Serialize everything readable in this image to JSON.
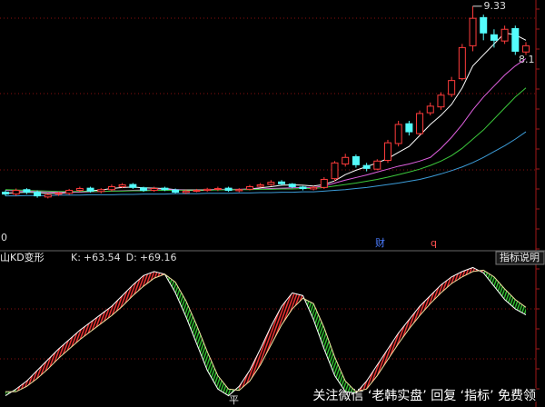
{
  "chart_data": [
    {
      "type": "candlestick",
      "ylim": [
        2.8,
        9.5
      ],
      "open": [
        4.25,
        4.2,
        4.32,
        4.25,
        4.12,
        4.2,
        4.22,
        4.3,
        4.36,
        4.27,
        4.32,
        4.4,
        4.46,
        4.37,
        4.3,
        4.36,
        4.31,
        4.24,
        4.29,
        4.3,
        4.33,
        4.36,
        4.29,
        4.33,
        4.41,
        4.46,
        4.53,
        4.47,
        4.39,
        4.34,
        4.38,
        4.62,
        5.02,
        5.22,
        4.98,
        4.88,
        5.12,
        5.58,
        6.12,
        5.85,
        6.42,
        6.58,
        6.92,
        7.35,
        8.25,
        9.02,
        8.55,
        8.38,
        8.72,
        8.08
      ],
      "high": [
        4.3,
        4.35,
        4.36,
        4.3,
        4.22,
        4.26,
        4.34,
        4.4,
        4.4,
        4.36,
        4.46,
        4.5,
        4.5,
        4.4,
        4.4,
        4.4,
        4.35,
        4.32,
        4.34,
        4.37,
        4.4,
        4.4,
        4.36,
        4.45,
        4.5,
        4.58,
        4.58,
        4.5,
        4.42,
        4.42,
        4.66,
        5.1,
        5.3,
        5.28,
        5.05,
        5.15,
        5.68,
        6.2,
        6.2,
        6.48,
        6.7,
        6.98,
        7.4,
        8.3,
        9.33,
        9.1,
        8.7,
        8.8,
        8.8,
        8.35
      ],
      "low": [
        4.15,
        4.15,
        4.2,
        4.1,
        4.08,
        4.15,
        4.18,
        4.26,
        4.24,
        4.22,
        4.28,
        4.36,
        4.34,
        4.26,
        4.26,
        4.28,
        4.22,
        4.2,
        4.25,
        4.26,
        4.28,
        4.26,
        4.25,
        4.3,
        4.38,
        4.42,
        4.44,
        4.36,
        4.3,
        4.3,
        4.34,
        4.55,
        4.95,
        4.92,
        4.82,
        4.85,
        5.05,
        5.5,
        5.8,
        5.8,
        6.35,
        6.5,
        6.85,
        7.3,
        8.1,
        8.4,
        8.2,
        8.3,
        8.0,
        8.0
      ],
      "close": [
        4.2,
        4.3,
        4.25,
        4.15,
        4.18,
        4.22,
        4.3,
        4.35,
        4.28,
        4.32,
        4.4,
        4.45,
        4.38,
        4.3,
        4.35,
        4.32,
        4.25,
        4.28,
        4.3,
        4.33,
        4.35,
        4.3,
        4.32,
        4.4,
        4.45,
        4.52,
        4.48,
        4.4,
        4.35,
        4.38,
        4.6,
        5.05,
        5.2,
        5.0,
        4.9,
        5.1,
        5.6,
        6.1,
        5.9,
        6.4,
        6.6,
        6.9,
        7.3,
        8.2,
        9.0,
        8.6,
        8.4,
        8.7,
        8.1,
        8.25
      ],
      "up_color": "#ff3c3c",
      "down_color": "#54fcfc",
      "series": [
        {
          "color": "#ffffff",
          "values": [
            4.22,
            4.24,
            4.25,
            4.24,
            4.22,
            4.22,
            4.24,
            4.26,
            4.29,
            4.31,
            4.35,
            4.38,
            4.39,
            4.37,
            4.36,
            4.35,
            4.32,
            4.3,
            4.3,
            4.3,
            4.32,
            4.32,
            4.32,
            4.34,
            4.37,
            4.4,
            4.44,
            4.45,
            4.44,
            4.42,
            4.46,
            4.56,
            4.73,
            4.85,
            4.95,
            5.05,
            5.17,
            5.34,
            5.5,
            5.8,
            6.1,
            6.35,
            6.65,
            7.1,
            7.7,
            8.0,
            8.3,
            8.6,
            8.55,
            8.4
          ]
        },
        {
          "color": "#e060e0",
          "values": [
            4.3,
            4.29,
            4.28,
            4.27,
            4.26,
            4.25,
            4.25,
            4.25,
            4.26,
            4.27,
            4.28,
            4.29,
            4.3,
            4.31,
            4.31,
            4.32,
            4.32,
            4.32,
            4.32,
            4.32,
            4.33,
            4.33,
            4.33,
            4.34,
            4.34,
            4.35,
            4.36,
            4.37,
            4.38,
            4.38,
            4.42,
            4.5,
            4.58,
            4.65,
            4.72,
            4.8,
            4.88,
            4.96,
            5.02,
            5.1,
            5.2,
            5.45,
            5.75,
            6.1,
            6.5,
            6.85,
            7.15,
            7.45,
            7.7,
            7.9
          ]
        },
        {
          "color": "#3cc83c",
          "values": [
            4.32,
            4.31,
            4.3,
            4.29,
            4.28,
            4.27,
            4.27,
            4.27,
            4.27,
            4.27,
            4.28,
            4.28,
            4.29,
            4.29,
            4.3,
            4.3,
            4.3,
            4.31,
            4.31,
            4.31,
            4.31,
            4.32,
            4.32,
            4.32,
            4.33,
            4.33,
            4.34,
            4.34,
            4.35,
            4.35,
            4.38,
            4.42,
            4.46,
            4.5,
            4.55,
            4.6,
            4.66,
            4.73,
            4.8,
            4.88,
            4.98,
            5.1,
            5.25,
            5.45,
            5.7,
            5.95,
            6.25,
            6.55,
            6.85,
            7.1
          ]
        },
        {
          "color": "#3c9cd8",
          "values": [
            4.15,
            4.15,
            4.16,
            4.16,
            4.16,
            4.17,
            4.17,
            4.17,
            4.18,
            4.18,
            4.18,
            4.19,
            4.19,
            4.2,
            4.2,
            4.2,
            4.21,
            4.21,
            4.21,
            4.22,
            4.22,
            4.22,
            4.23,
            4.23,
            4.24,
            4.24,
            4.25,
            4.25,
            4.26,
            4.26,
            4.28,
            4.3,
            4.32,
            4.35,
            4.38,
            4.42,
            4.46,
            4.5,
            4.55,
            4.6,
            4.67,
            4.75,
            4.84,
            4.94,
            5.06,
            5.2,
            5.36,
            5.52,
            5.7,
            5.9
          ]
        }
      ],
      "annotations": [
        "8.1",
        "0",
        "财",
        "q"
      ]
    },
    {
      "type": "kd",
      "title": "山KD变形",
      "ylim": [
        0,
        100
      ],
      "rise_color": "#e83030",
      "fall_color": "#2eb82e",
      "series": [
        {
          "name": "K:",
          "color": "#ffffff",
          "values": [
            3,
            8,
            14,
            22,
            30,
            38,
            45,
            52,
            58,
            64,
            70,
            78,
            86,
            93,
            96,
            94,
            80,
            62,
            42,
            22,
            8,
            3,
            10,
            22,
            38,
            55,
            70,
            80,
            78,
            60,
            38,
            18,
            6,
            5,
            14,
            26,
            38,
            50,
            60,
            70,
            78,
            86,
            92,
            96,
            99,
            95,
            85,
            75,
            68,
            63.54
          ],
          "value_labels": [
            null,
            null,
            null,
            null,
            null,
            null,
            null,
            null,
            null,
            null,
            null,
            null,
            null,
            null,
            null,
            null,
            null,
            null,
            null,
            null,
            null,
            null,
            null,
            null,
            null,
            null,
            null,
            null,
            null,
            null,
            null,
            null,
            null,
            null,
            null,
            null,
            null,
            null,
            null,
            null,
            null,
            null,
            null,
            null,
            null,
            null,
            null,
            null,
            null,
            "+63.54"
          ]
        },
        {
          "name": "D:",
          "color": "#f0e0a0",
          "values": [
            6,
            6,
            10,
            16,
            23,
            31,
            38,
            45,
            51,
            57,
            63,
            70,
            78,
            85,
            91,
            94,
            88,
            74,
            56,
            36,
            18,
            8,
            7,
            14,
            26,
            41,
            56,
            68,
            76,
            72,
            54,
            32,
            14,
            6,
            8,
            18,
            30,
            42,
            53,
            63,
            72,
            80,
            87,
            92,
            96,
            97,
            92,
            83,
            75,
            69.16
          ],
          "value_labels": [
            null,
            null,
            null,
            null,
            null,
            null,
            null,
            null,
            null,
            null,
            null,
            null,
            null,
            null,
            null,
            null,
            null,
            null,
            null,
            null,
            null,
            null,
            null,
            null,
            null,
            null,
            null,
            null,
            null,
            null,
            null,
            null,
            null,
            null,
            null,
            null,
            null,
            null,
            null,
            null,
            null,
            null,
            null,
            null,
            null,
            null,
            null,
            null,
            null,
            "+69.16"
          ]
        }
      ],
      "annotations": [
        "平"
      ]
    }
  ],
  "button": "指标说明",
  "watermark": "关注微信 ‘老韩实盘’ 回复 ‘指标’ 免费领"
}
